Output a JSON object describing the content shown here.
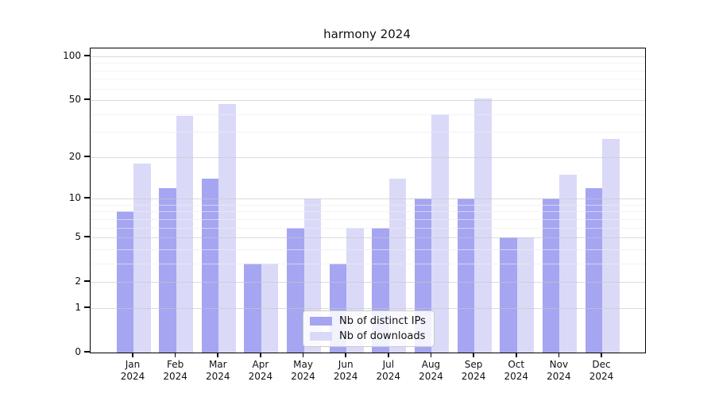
{
  "chart_data": {
    "type": "bar",
    "title": "harmony 2024",
    "categories": [
      "Jan",
      "Feb",
      "Mar",
      "Apr",
      "May",
      "Jun",
      "Jul",
      "Aug",
      "Sep",
      "Oct",
      "Nov",
      "Dec"
    ],
    "category_year": "2024",
    "series": [
      {
        "name": "Nb of distinct IPs",
        "color": "#a5a5f2",
        "values": [
          8,
          12,
          14,
          3,
          6,
          3,
          6,
          10,
          10,
          5,
          10,
          12
        ]
      },
      {
        "name": "Nb of downloads",
        "color": "#dadaf8",
        "values": [
          18,
          39,
          47,
          3,
          10,
          6,
          14,
          40,
          51,
          5,
          15,
          27
        ]
      }
    ],
    "xlabel": "",
    "ylabel": "",
    "yscale": "log1p",
    "ylim": [
      0,
      113
    ],
    "yticks_major": [
      0,
      1,
      2,
      5,
      10,
      20,
      50,
      100
    ],
    "ytick_labels": [
      "0",
      "1",
      "2",
      "5",
      "10",
      "20",
      "50",
      "100"
    ],
    "yticks_minor": [
      3,
      4,
      6,
      7,
      8,
      9,
      30,
      40,
      60,
      70,
      80,
      90
    ],
    "grid": "on",
    "legend_position": "lower center inside plot",
    "colors": {
      "grid_major": "#c8c8c8",
      "grid_minor": "#ececec",
      "spine": "#000000",
      "background": "#ffffff"
    }
  }
}
